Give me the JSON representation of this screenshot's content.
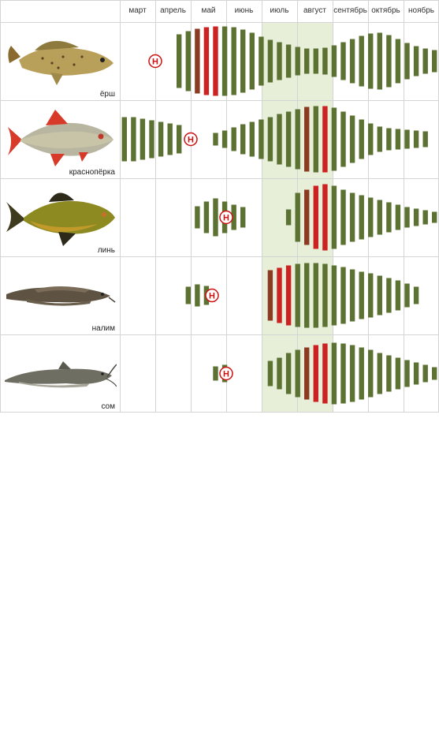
{
  "colors": {
    "bar": "#5c7232",
    "bar_peak_dark": "#8a3b22",
    "bar_peak_red": "#cc2222",
    "spawn": "#cc1111",
    "highlight": "#e7efd8",
    "grid": "#d4d4d4"
  },
  "months": [
    "март",
    "апрель",
    "май",
    "июнь",
    "июль",
    "август",
    "сентябрь",
    "октябрь",
    "ноябрь"
  ],
  "highlight_months": [
    "июль",
    "август"
  ],
  "spawn_marker": "Н",
  "fish": [
    {
      "name": "ёрш",
      "icon": "ruffe-fish-icon",
      "spawn_month": 1.0,
      "activity": [
        0,
        0,
        0,
        0,
        0,
        0,
        68,
        76,
        82,
        86,
        88,
        88,
        86,
        80,
        72,
        62,
        54,
        48,
        42,
        36,
        32,
        32,
        34,
        40,
        48,
        56,
        64,
        70,
        72,
        66,
        56,
        46,
        38,
        32,
        28
      ],
      "peak": {
        "8": "dark",
        "9": "red",
        "10": "red"
      }
    },
    {
      "name": "краснопёрка",
      "icon": "rudd-fish-icon",
      "spawn_month": 2.0,
      "activity": [
        56,
        56,
        52,
        48,
        44,
        40,
        36,
        0,
        0,
        0,
        16,
        22,
        30,
        38,
        44,
        50,
        56,
        64,
        70,
        76,
        82,
        84,
        84,
        80,
        70,
        60,
        50,
        40,
        32,
        28,
        26,
        24,
        22,
        20,
        0
      ],
      "peak": {
        "20": "dark",
        "22": "red"
      }
    },
    {
      "name": "линь",
      "icon": "tench-fish-icon",
      "spawn_month": 3.0,
      "activity": [
        0,
        0,
        0,
        0,
        0,
        0,
        0,
        0,
        28,
        40,
        48,
        40,
        32,
        26,
        0,
        0,
        0,
        0,
        20,
        62,
        70,
        80,
        84,
        80,
        70,
        62,
        56,
        50,
        44,
        38,
        32,
        26,
        22,
        18,
        14
      ],
      "peak": {
        "20": "dark",
        "21": "red",
        "22": "red"
      }
    },
    {
      "name": "налим",
      "icon": "burbot-fish-icon",
      "spawn_month": 2.6,
      "activity": [
        0,
        0,
        0,
        0,
        0,
        0,
        0,
        22,
        28,
        24,
        0,
        0,
        0,
        0,
        0,
        0,
        64,
        70,
        76,
        80,
        82,
        82,
        80,
        76,
        72,
        66,
        60,
        56,
        50,
        44,
        38,
        30,
        22,
        0,
        0
      ],
      "peak": {
        "16": "dark",
        "17": "red",
        "18": "red"
      }
    },
    {
      "name": "сом",
      "icon": "catfish-fish-icon",
      "spawn_month": 3.0,
      "activity": [
        0,
        0,
        0,
        0,
        0,
        0,
        0,
        0,
        0,
        0,
        18,
        22,
        0,
        0,
        0,
        0,
        32,
        40,
        52,
        60,
        66,
        72,
        76,
        78,
        76,
        72,
        66,
        60,
        52,
        46,
        40,
        34,
        28,
        22,
        16
      ],
      "peak": {
        "20": "dark",
        "21": "red",
        "22": "red"
      }
    }
  ]
}
